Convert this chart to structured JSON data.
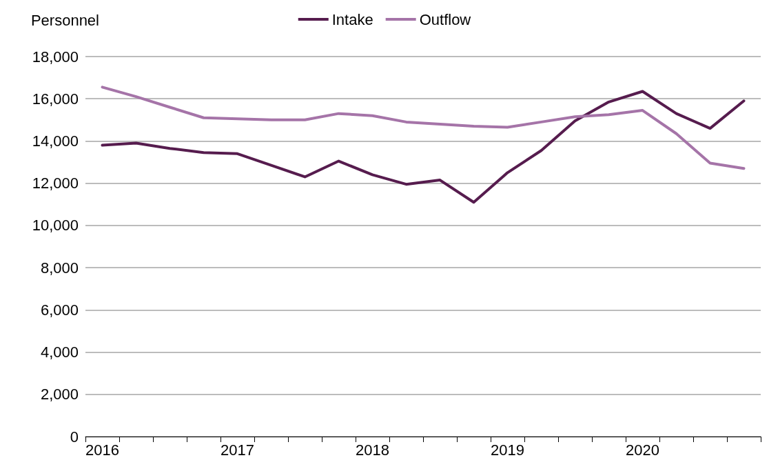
{
  "chart_data": {
    "type": "line",
    "ylabel": "Personnel",
    "categories": [
      "2016",
      null,
      null,
      null,
      "2017",
      null,
      null,
      null,
      "2018",
      null,
      null,
      null,
      "2019",
      null,
      null,
      null,
      "2020",
      null,
      null,
      null
    ],
    "series": [
      {
        "name": "Intake",
        "color": "#561c4e",
        "values": [
          13800,
          13900,
          13650,
          13450,
          13400,
          12850,
          12300,
          13050,
          12400,
          11950,
          12150,
          11100,
          12500,
          13550,
          14950,
          15850,
          16350,
          15300,
          14600,
          15900
        ]
      },
      {
        "name": "Outflow",
        "color": "#a574a8",
        "values": [
          16550,
          16100,
          15600,
          15100,
          15050,
          15000,
          15000,
          15300,
          15200,
          14900,
          14800,
          14700,
          14650,
          14900,
          15150,
          15250,
          15450,
          14350,
          12950,
          12700
        ]
      }
    ],
    "ylim": [
      0,
      18000
    ],
    "yticks": [
      0,
      {
        "value": 2000,
        "label": "2,000"
      },
      {
        "value": 4000,
        "label": "4,000"
      },
      {
        "value": 6000,
        "label": "6,000"
      },
      {
        "value": 8000,
        "label": "8,000"
      },
      {
        "value": 10000,
        "label": "10,000"
      },
      {
        "value": 12000,
        "label": "12,000"
      },
      {
        "value": 14000,
        "label": "14,000"
      },
      {
        "value": 16000,
        "label": "16,000"
      },
      {
        "value": 18000,
        "label": "18,000"
      }
    ],
    "grid": "y",
    "legend": "top",
    "marker": "none",
    "line_style": "solid"
  }
}
